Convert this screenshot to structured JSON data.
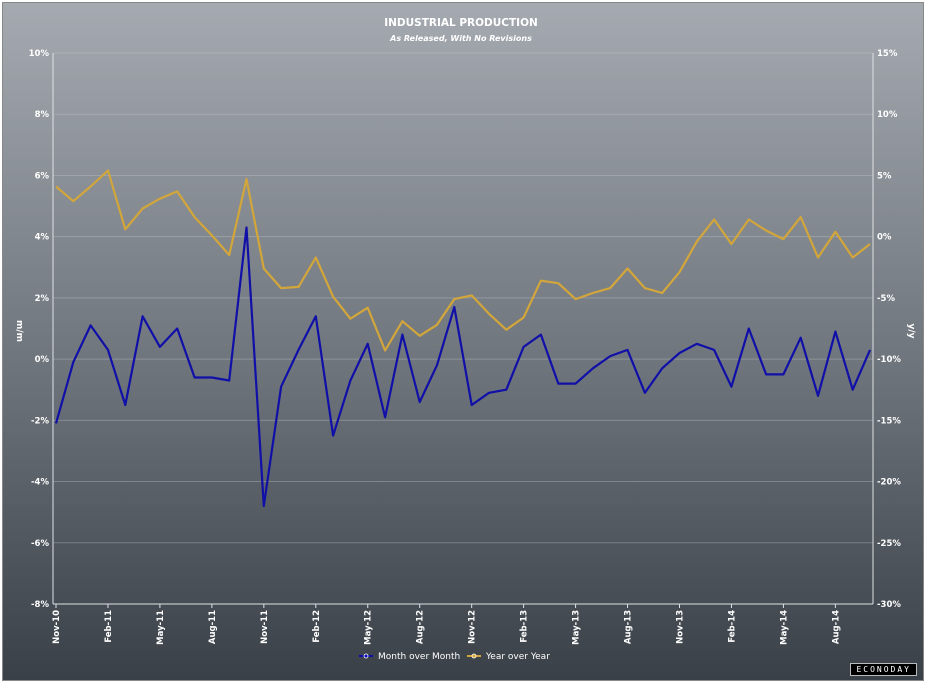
{
  "chart_data": {
    "type": "line",
    "title": "INDUSTRIAL PRODUCTION",
    "subtitle": "As Released, With No Revisions",
    "ylabel_left": "m/m",
    "ylabel_right": "y/y",
    "ylim_left": [
      -8,
      10
    ],
    "ylim_right": [
      -30,
      15
    ],
    "yticks_left": [
      "10%",
      "8%",
      "6%",
      "4%",
      "2%",
      "0%",
      "-2%",
      "-4%",
      "-6%",
      "-8%"
    ],
    "yticks_right": [
      "15%",
      "10%",
      "5%",
      "0%",
      "-5%",
      "-10%",
      "-15%",
      "-20%",
      "-25%",
      "-30%"
    ],
    "x_tick_labels": [
      "Nov-10",
      "Feb-11",
      "May-11",
      "Aug-11",
      "Nov-11",
      "Feb-12",
      "May-12",
      "Aug-12",
      "Nov-12",
      "Feb-13",
      "May-13",
      "Aug-13",
      "Nov-13",
      "Feb-14",
      "May-14",
      "Aug-14"
    ],
    "x": [
      "Nov-10",
      "Dec-10",
      "Jan-11",
      "Feb-11",
      "Mar-11",
      "Apr-11",
      "May-11",
      "Jun-11",
      "Jul-11",
      "Aug-11",
      "Sep-11",
      "Oct-11",
      "Nov-11",
      "Dec-11",
      "Jan-12",
      "Feb-12",
      "Mar-12",
      "Apr-12",
      "May-12",
      "Jun-12",
      "Jul-12",
      "Aug-12",
      "Sep-12",
      "Oct-12",
      "Nov-12",
      "Dec-12",
      "Jan-13",
      "Feb-13",
      "Mar-13",
      "Apr-13",
      "May-13",
      "Jun-13",
      "Jul-13",
      "Aug-13",
      "Sep-13",
      "Oct-13",
      "Nov-13",
      "Dec-13",
      "Jan-14",
      "Feb-14",
      "Mar-14",
      "Apr-14",
      "May-14",
      "Jun-14",
      "Jul-14",
      "Aug-14",
      "Sep-14",
      "Oct-14"
    ],
    "series": [
      {
        "name": "Month over Month",
        "axis": "left",
        "color": "#1010a8",
        "values": [
          -2.1,
          -0.1,
          1.1,
          0.3,
          -1.5,
          1.4,
          0.4,
          1.0,
          -0.6,
          -0.6,
          -0.7,
          4.3,
          -4.8,
          -0.9,
          0.3,
          1.4,
          -2.5,
          -0.7,
          0.5,
          -1.9,
          0.8,
          -1.4,
          -0.2,
          1.7,
          -1.5,
          -1.1,
          -1.0,
          0.4,
          0.8,
          -0.8,
          -0.8,
          -0.3,
          0.1,
          0.3,
          -1.1,
          -0.3,
          0.2,
          0.5,
          0.3,
          -0.9,
          1.0,
          -0.5,
          -0.5,
          0.7,
          -1.2,
          0.9,
          -1.0,
          0.3
        ]
      },
      {
        "name": "Year over Year",
        "axis": "right",
        "color": "#d2a63a",
        "values": [
          4.1,
          2.9,
          4.1,
          5.4,
          0.6,
          2.3,
          3.1,
          3.7,
          1.6,
          0.1,
          -1.5,
          4.7,
          -2.6,
          -4.2,
          -4.1,
          -1.7,
          -4.9,
          -6.7,
          -5.8,
          -9.3,
          -6.9,
          -8.1,
          -7.2,
          -5.1,
          -4.8,
          -6.3,
          -7.6,
          -6.6,
          -3.6,
          -3.8,
          -5.1,
          -4.6,
          -4.2,
          -2.6,
          -4.2,
          -4.6,
          -2.9,
          -0.4,
          1.4,
          -0.6,
          1.4,
          0.5,
          -0.2,
          1.6,
          -1.7,
          0.4,
          -1.7,
          -0.6
        ]
      }
    ],
    "legend_position": "bottom-center",
    "grid": true
  },
  "brand_label": "ECONODAY"
}
